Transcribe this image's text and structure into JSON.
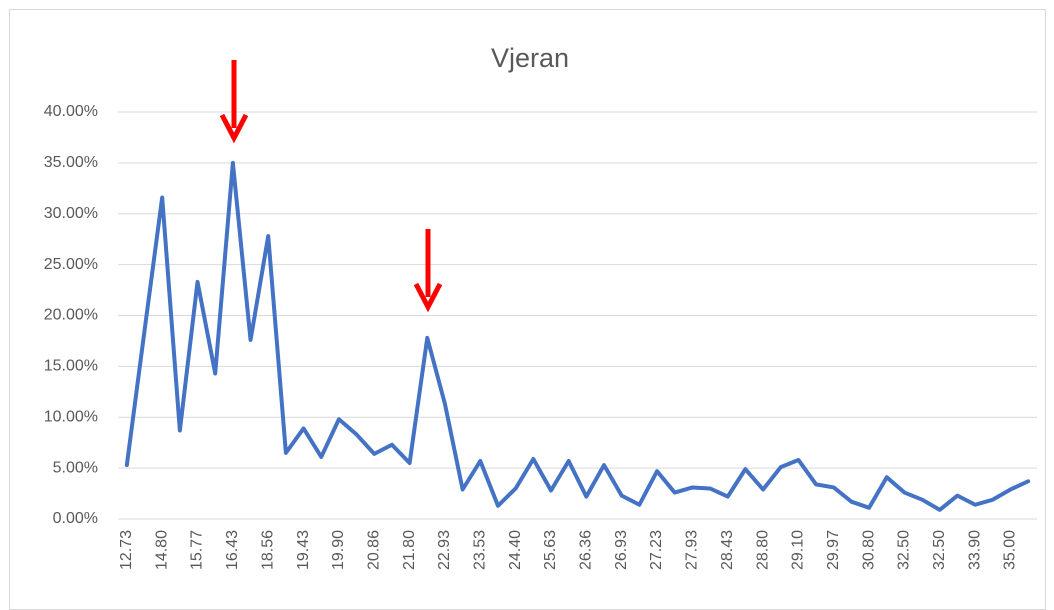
{
  "chart_data": {
    "type": "line",
    "title": "Vjeran",
    "categories": [
      "12.73",
      null,
      "14.80",
      null,
      "15.77",
      null,
      "16.43",
      null,
      "18.56",
      null,
      "19.43",
      null,
      "19.90",
      null,
      "20.86",
      null,
      "21.80",
      null,
      "22.93",
      null,
      "23.53",
      null,
      "24.40",
      null,
      "25.63",
      null,
      "26.36",
      null,
      "26.93",
      null,
      "27.23",
      null,
      "27.93",
      null,
      "28.43",
      null,
      "28.80",
      null,
      "29.10",
      null,
      "29.97",
      null,
      "30.80",
      null,
      "32.50",
      null,
      "32.50",
      null,
      "33.90",
      null,
      "35.00",
      null
    ],
    "series": [
      {
        "name": "Vjeran",
        "color": "#4472c4",
        "values": [
          5.3,
          18.5,
          31.6,
          8.7,
          23.3,
          14.3,
          35.0,
          17.6,
          27.8,
          6.5,
          8.9,
          6.1,
          9.8,
          8.3,
          6.4,
          7.3,
          5.5,
          17.8,
          11.3,
          2.9,
          5.7,
          1.3,
          3.0,
          5.9,
          2.8,
          5.7,
          2.2,
          5.3,
          2.3,
          1.4,
          4.7,
          2.6,
          3.1,
          3.0,
          2.2,
          4.9,
          2.9,
          5.1,
          5.8,
          3.4,
          3.1,
          1.7,
          1.1,
          4.1,
          2.6,
          1.9,
          0.9,
          2.3,
          1.4,
          1.9,
          2.9,
          3.7
        ]
      }
    ],
    "ylim": [
      0,
      40
    ],
    "yticks": [
      {
        "value": 0,
        "label": "0.00%"
      },
      {
        "value": 5,
        "label": "5.00%"
      },
      {
        "value": 10,
        "label": "10.00%"
      },
      {
        "value": 15,
        "label": "15.00%"
      },
      {
        "value": 20,
        "label": "20.00%"
      },
      {
        "value": 25,
        "label": "25.00%"
      },
      {
        "value": 30,
        "label": "30.00%"
      },
      {
        "value": 35,
        "label": "35.00%"
      },
      {
        "value": 40,
        "label": "40.00%"
      }
    ],
    "grid": true
  }
}
